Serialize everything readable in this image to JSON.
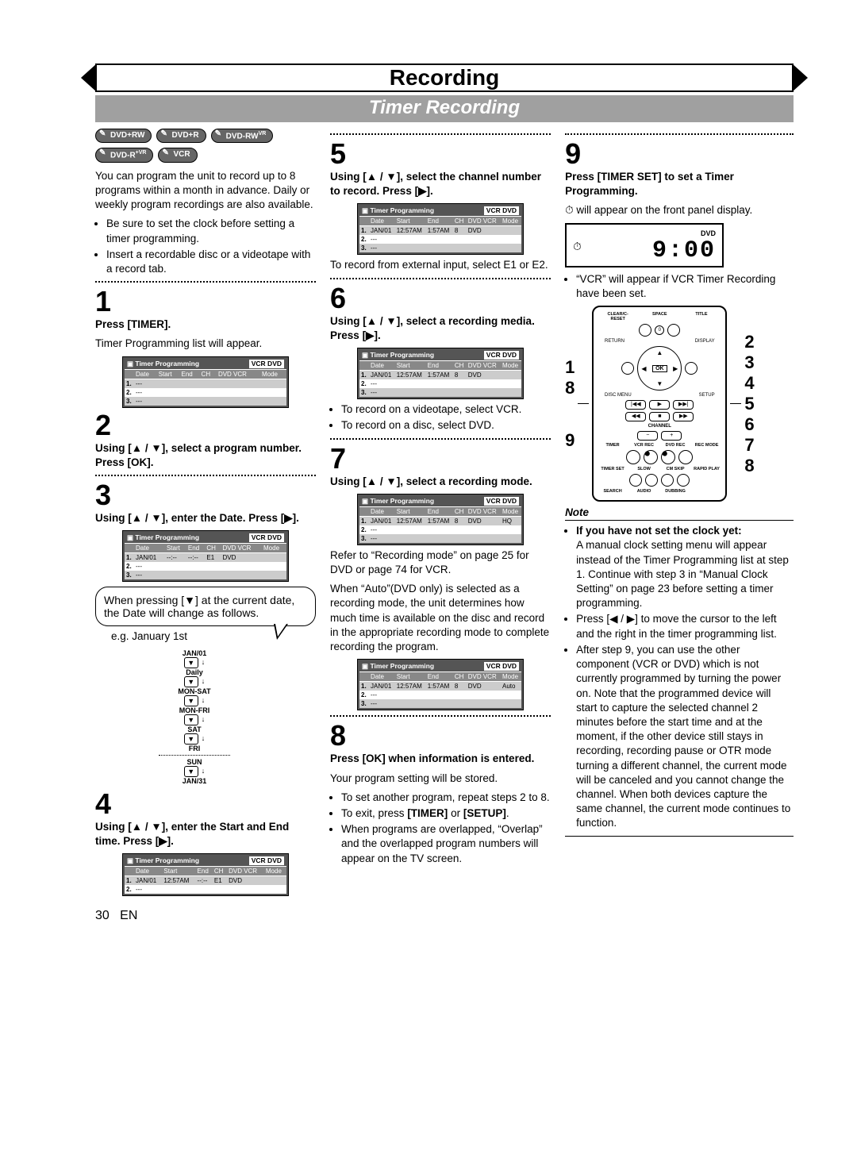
{
  "header": {
    "title": "Recording",
    "subtitle": "Timer Recording"
  },
  "badges": [
    "DVD+RW",
    "DVD+R",
    "DVD-RW",
    "DVD-R",
    "VCR"
  ],
  "badge_sup": {
    "2": "VR",
    "3": "+VR"
  },
  "intro": {
    "para": "You can program the unit to record up to 8 programs within a month in advance. Daily or weekly program recordings are also available.",
    "bullets": [
      "Be sure to set the clock before setting a timer programming.",
      "Insert a recordable disc or a videotape with a record tab."
    ]
  },
  "tp_header": {
    "title": "Timer Programming",
    "vcr_dvd": "VCR DVD",
    "cols": [
      "",
      "Date",
      "Start",
      "End",
      "CH",
      "DVD VCR",
      "Mode"
    ]
  },
  "tp_blank": [
    [
      "1.",
      "---",
      "",
      "",
      "",
      "",
      ""
    ],
    [
      "2.",
      "---",
      "",
      "",
      "",
      "",
      ""
    ],
    [
      "3.",
      "---",
      "",
      "",
      "",
      "",
      ""
    ]
  ],
  "tp_date": [
    [
      "1.",
      "JAN/01",
      "--:--",
      "--:--",
      "E1",
      "DVD",
      ""
    ],
    [
      "2.",
      "---",
      "",
      "",
      "",
      "",
      ""
    ],
    [
      "3.",
      "---",
      "",
      "",
      "",
      "",
      ""
    ]
  ],
  "tp_start": [
    [
      "1.",
      "JAN/01",
      "12:57AM",
      "--:--",
      "E1",
      "DVD",
      ""
    ],
    [
      "2.",
      "---",
      "",
      "",
      "",
      "",
      ""
    ]
  ],
  "tp_ch": [
    [
      "1.",
      "JAN/01",
      "12:57AM",
      "1:57AM",
      "8",
      "DVD",
      ""
    ],
    [
      "2.",
      "---",
      "",
      "",
      "",
      "",
      ""
    ],
    [
      "3.",
      "---",
      "",
      "",
      "",
      "",
      ""
    ]
  ],
  "tp_auto": [
    [
      "1.",
      "JAN/01",
      "12:57AM",
      "1:57AM",
      "8",
      "DVD",
      "Auto"
    ],
    [
      "2.",
      "---",
      "",
      "",
      "",
      "",
      ""
    ],
    [
      "3.",
      "---",
      "",
      "",
      "",
      "",
      ""
    ]
  ],
  "tp_hq": [
    [
      "1.",
      "JAN/01",
      "12:57AM",
      "1:57AM",
      "8",
      "DVD",
      "HQ"
    ],
    [
      "2.",
      "---",
      "",
      "",
      "",
      "",
      ""
    ],
    [
      "3.",
      "---",
      "",
      "",
      "",
      "",
      ""
    ]
  ],
  "steps": {
    "s1": {
      "head": "Press [TIMER].",
      "body": "Timer Programming list will appear."
    },
    "s2": {
      "head": "Using [▲ / ▼], select a program number. Press [OK]."
    },
    "s3": {
      "head": "Using [▲ / ▼], enter the Date. Press [▶]."
    },
    "s3_bubble": "When pressing [▼] at the current date, the Date will change as follows.",
    "s3_eg": "e.g. January 1st",
    "cycle": [
      "JAN/01",
      "Daily",
      "MON-SAT",
      "MON-FRI",
      "SAT",
      "FRI",
      "SUN",
      "JAN/31"
    ],
    "s4": {
      "head": "Using [▲ / ▼], enter the Start and End time. Press [▶]."
    },
    "s5": {
      "head": "Using [▲ / ▼], select the channel number to record. Press [▶].",
      "tail": "To record from external input, select E1 or E2."
    },
    "s6": {
      "head": "Using [▲ / ▼], select a recording media. Press [▶].",
      "b1": "To record on a videotape, select VCR.",
      "b2": "To record on a disc, select DVD."
    },
    "s7": {
      "head": "Using [▲ / ▼], select a recording mode.",
      "p1": "Refer to “Recording mode” on page 25 for DVD or page 74 for VCR.",
      "p2": "When “Auto”(DVD only) is selected as a recording mode, the unit determines how much time is available on the disc and record in the appropriate recording mode to complete recording the program."
    },
    "s8": {
      "head": "Press [OK] when information is entered.",
      "p1": "Your program setting will be stored.",
      "b1": "To set another program, repeat steps 2 to 8.",
      "b2": "To exit, press [TIMER] or [SETUP].",
      "b3": "When programs are overlapped, “Overlap” and the overlapped program numbers will appear on the TV screen."
    },
    "s9": {
      "head": "Press [TIMER SET] to set a Timer Programming.",
      "p1_a": "⏱ will appear on the front panel display.",
      "lcd": {
        "dvd": "DVD",
        "time": "9:00"
      },
      "p2": "“VCR” will appear if VCR Timer Recording have been set."
    }
  },
  "remote_labels": {
    "top": [
      "CLEAR/C-RESET",
      "SPACE",
      "TITLE"
    ],
    "mid_left": "RETURN",
    "mid_right": "DISPLAY",
    "disc_menu": "DISC MENU",
    "setup": "SETUP",
    "channel": "CHANNEL",
    "row1": [
      "TIMER",
      "VCR REC",
      "DVD REC",
      "REC MODE"
    ],
    "row2": [
      "TIMER SET",
      "SLOW",
      "CM SKIP",
      "RAPID PLAY"
    ],
    "row3": [
      "SEARCH",
      "AUDIO",
      "DUBBING",
      ""
    ]
  },
  "remote_side_left": [
    "1",
    "8",
    "",
    "9"
  ],
  "remote_side_right": [
    "2",
    "3",
    "4",
    "5",
    "6",
    "7",
    "8"
  ],
  "note": {
    "title": "Note",
    "h1": "If you have not set the clock yet:",
    "p1": "A manual clock setting menu will appear instead of the Timer Programming list at step 1. Continue with step 3 in “Manual Clock Setting” on page 23 before setting a timer programming.",
    "b1": "Press [◀ / ▶] to move the cursor to the left and the right in the timer programming list.",
    "b2": "After step 9, you can use the other component (VCR or DVD) which is not currently programmed by turning the power on. Note that the programmed device will start to capture the selected channel 2 minutes before the start time and at the moment, if the other device still stays in recording, recording pause or OTR mode turning a different channel, the current mode will be canceled and you cannot change the channel. When both devices capture the same channel, the current mode continues to function."
  },
  "footer": {
    "page": "30",
    "lang": "EN"
  }
}
